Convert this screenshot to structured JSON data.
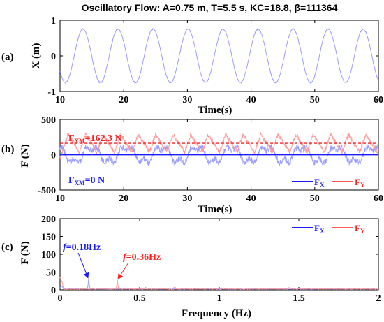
{
  "title": "Oscillatory Flow: A=0.75 m, T=5.5 s, KC=18.8, β=111364",
  "colors": {
    "fx": "#1a1aff",
    "fy": "#ff2020",
    "fx_light": "#9a9cff",
    "fy_light": "#ff9a9a",
    "axis": "#000000"
  },
  "chart_data": [
    {
      "id": "a",
      "panel_label": "(a)",
      "type": "line",
      "ylabel": "X (m)",
      "xlabel": "Time(s)",
      "xlim": [
        10,
        60
      ],
      "ylim": [
        -1,
        1
      ],
      "xticks": [
        10,
        20,
        30,
        40,
        50,
        60
      ],
      "yticks": [
        -1,
        0,
        1
      ],
      "series": [
        {
          "color": "#9a9cff",
          "amplitude": 0.75,
          "period": 5.5,
          "phase_time": 13.6
        }
      ]
    },
    {
      "id": "b",
      "panel_label": "(b)",
      "type": "line",
      "ylabel": "F (N)",
      "xlabel": "Time(s)",
      "xlim": [
        10,
        60
      ],
      "ylim": [
        -500,
        500
      ],
      "xticks": [
        10,
        20,
        30,
        40,
        50,
        60
      ],
      "yticks": [
        -500,
        0,
        500
      ],
      "series": [
        {
          "name": "F",
          "sub": "X",
          "color": "#1a1aff",
          "trace_color": "#9a9cff",
          "mean": 0,
          "amplitude": 150,
          "period": 5.5
        },
        {
          "name": "F",
          "sub": "Y",
          "color": "#ff2020",
          "trace_color": "#ff9a9a",
          "mean": 162.3,
          "amplitude": 140,
          "period": 2.75
        }
      ],
      "mean_lines": [
        {
          "series": "FX",
          "value": 0,
          "style": "solid",
          "color": "#1a1aff"
        },
        {
          "series": "FY",
          "value": 162.3,
          "style": "dashed",
          "color": "#ff2020"
        }
      ],
      "annotations": [
        {
          "main": "F",
          "sub": "YM",
          "rest": "=162.3 N",
          "color": "#ff2020"
        },
        {
          "main": "F",
          "sub": "XM",
          "rest": "=0 N",
          "color": "#1a1aff"
        }
      ],
      "legend": "bottom-right"
    },
    {
      "id": "c",
      "panel_label": "(c)",
      "type": "line",
      "ylabel": "F (N)",
      "xlabel": "Frequency (Hz)",
      "xlim": [
        0,
        2
      ],
      "ylim": [
        0,
        200
      ],
      "xticks": [
        0,
        0.5,
        1,
        1.5,
        2
      ],
      "yticks": [
        0,
        50,
        100,
        150,
        200
      ],
      "series": [
        {
          "name": "F",
          "sub": "X",
          "color": "#1a1aff",
          "trace_color": "#9a9cff",
          "peak_freq": 0.18,
          "peak_value": 30
        },
        {
          "name": "F",
          "sub": "Y",
          "color": "#ff2020",
          "trace_color": "#ff9a9a",
          "peak_freq": 0.36,
          "peak_value": 27
        }
      ],
      "annotations": [
        {
          "italic": "f",
          "rest": "=0.18Hz",
          "color": "#1a1aff",
          "target": [
            0.18,
            30
          ]
        },
        {
          "italic": "f",
          "rest": "=0.36Hz",
          "color": "#ff2020",
          "target": [
            0.36,
            27
          ]
        }
      ],
      "legend": "top-right"
    }
  ]
}
